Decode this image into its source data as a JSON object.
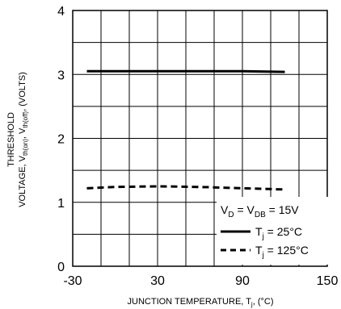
{
  "chart_data": {
    "type": "line",
    "xlabel": "JUNCTION TEMPERATURE, T",
    "xlabel_sub": "j",
    "xlabel_unit": ", (°C)",
    "ylabel_line1": "THRESHOLD",
    "ylabel_line2_prefix": "VOLTAGE, V",
    "ylabel_line2_sub1": "th(on)",
    "ylabel_line2_mid": ", V",
    "ylabel_line2_sub2": "th(off)",
    "ylabel_line2_suffix": ", (VOLTS)",
    "xlim": [
      -30,
      150
    ],
    "ylim": [
      0,
      4
    ],
    "x_ticks": [
      -30,
      30,
      90,
      150
    ],
    "y_ticks": [
      0,
      1,
      2,
      3,
      4
    ],
    "x_grid_step": 20,
    "y_grid_step": 0.5,
    "grid": true,
    "legend_position": "bottom-right",
    "legend": {
      "condition_prefix": "V",
      "condition_sub1": "D",
      "condition_mid": " = V",
      "condition_sub2": "DB",
      "condition_suffix": " = 15V"
    },
    "series": [
      {
        "name_prefix": "T",
        "name_sub": "j",
        "name_suffix": " = 25°C",
        "style": "solid",
        "x": [
          -20,
          0,
          30,
          60,
          90,
          120
        ],
        "y": [
          3.05,
          3.05,
          3.05,
          3.05,
          3.05,
          3.04
        ]
      },
      {
        "name_prefix": "T",
        "name_sub": "j",
        "name_suffix": " = 125°C",
        "style": "dashed",
        "x": [
          -20,
          0,
          30,
          60,
          90,
          120
        ],
        "y": [
          1.22,
          1.24,
          1.25,
          1.24,
          1.22,
          1.2
        ]
      }
    ]
  }
}
